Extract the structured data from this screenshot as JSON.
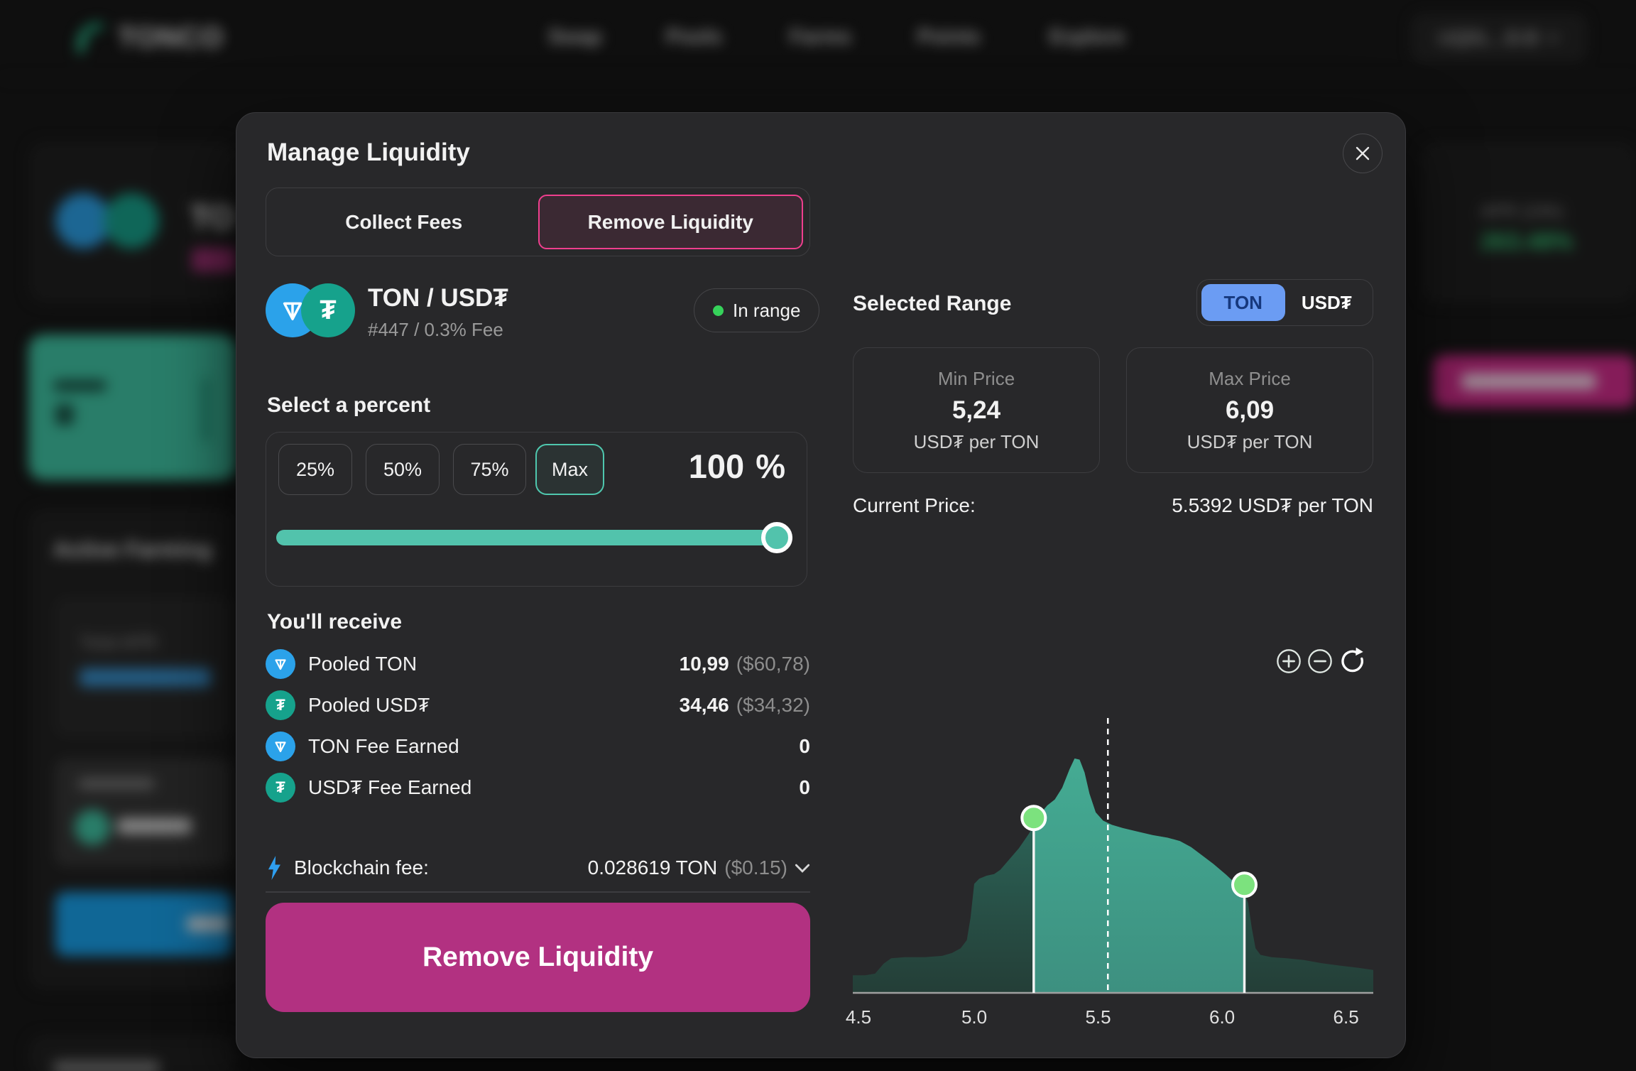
{
  "nav": {
    "brand": "TONCO",
    "items": [
      "Swap",
      "Pools",
      "Farms",
      "Points",
      "Explore"
    ],
    "wallet": "UQDL...i5-B"
  },
  "background": {
    "position_title": "TON",
    "farming_title": "Active Farming",
    "total_apr_label": "Total APR",
    "apr_label": "APR (24h)",
    "apr_value": "263.48%"
  },
  "modal": {
    "title": "Manage Liquidity",
    "tabs": [
      {
        "label": "Collect Fees",
        "active": false
      },
      {
        "label": "Remove Liquidity",
        "active": true
      }
    ],
    "pair": {
      "name": "TON / USD₮",
      "meta": "#447 / 0.3% Fee",
      "status": "In range"
    },
    "percent": {
      "label": "Select a percent",
      "options": [
        "25%",
        "50%",
        "75%",
        "Max"
      ],
      "selected": "Max",
      "value": "100",
      "unit": "%"
    },
    "receive": {
      "label": "You'll receive",
      "rows": [
        {
          "icon": "ton-coin",
          "label": "Pooled TON",
          "value": "10,99",
          "sub": "($60,78)"
        },
        {
          "icon": "usdt-coin",
          "label": "Pooled USD₮",
          "value": "34,46",
          "sub": "($34,32)"
        },
        {
          "icon": "ton-coin",
          "label": "TON Fee Earned",
          "value": "0",
          "sub": ""
        },
        {
          "icon": "usdt-coin",
          "label": "USD₮ Fee Earned",
          "value": "0",
          "sub": ""
        }
      ]
    },
    "fee": {
      "label": "Blockchain fee:",
      "value": "0.028619 TON",
      "sub": "($0.15)"
    },
    "submit": "Remove Liquidity",
    "range": {
      "heading": "Selected Range",
      "toggle": [
        "TON",
        "USD₮"
      ],
      "active_toggle": "TON",
      "min": {
        "label": "Min Price",
        "value": "5,24",
        "unit": "USD₮ per TON"
      },
      "max": {
        "label": "Max Price",
        "value": "6,09",
        "unit": "USD₮ per TON"
      },
      "current": {
        "label": "Current Price:",
        "value": "5.5392 USD₮ per TON"
      }
    }
  },
  "colors": {
    "accent_magenta": "#b23181",
    "tab_border_pink": "#ef3f8e",
    "teal": "#52c3ac",
    "toggle_blue": "#6b9cf3",
    "in_range_green": "#36d25a",
    "ton_blue": "#2ba2ea",
    "usdt_teal": "#16a28c",
    "chart_in_range_top": "#44ab93",
    "chart_in_range_bottom": "#3d9080",
    "chart_out_range_top": "#2e7062",
    "chart_out_range_bottom": "#243e37",
    "chart_handle_green": "#7ce27e"
  },
  "chart_data": {
    "type": "area",
    "description": "liquidity distribution vs price with selected range",
    "x_axis_min": 4.51,
    "x_axis_max": 6.61,
    "x_ticks": [
      4.5,
      5.0,
      5.5,
      6.0,
      6.5
    ],
    "x_tick_labels": [
      "4.5",
      "5.0",
      "5.5",
      "6.0",
      "6.5"
    ],
    "selected_range": [
      5.24,
      6.09
    ],
    "current_price": 5.5392,
    "y_max": 1.0,
    "points": [
      [
        4.505,
        0.075
      ],
      [
        4.56,
        0.075
      ],
      [
        4.6,
        0.082
      ],
      [
        4.635,
        0.125
      ],
      [
        4.665,
        0.148
      ],
      [
        4.72,
        0.152
      ],
      [
        4.8,
        0.152
      ],
      [
        4.87,
        0.158
      ],
      [
        4.91,
        0.17
      ],
      [
        4.945,
        0.19
      ],
      [
        4.97,
        0.225
      ],
      [
        4.985,
        0.32
      ],
      [
        5.0,
        0.465
      ],
      [
        5.02,
        0.487
      ],
      [
        5.05,
        0.5
      ],
      [
        5.08,
        0.507
      ],
      [
        5.105,
        0.525
      ],
      [
        5.14,
        0.568
      ],
      [
        5.18,
        0.617
      ],
      [
        5.22,
        0.678
      ],
      [
        5.24,
        0.713
      ],
      [
        5.265,
        0.762
      ],
      [
        5.295,
        0.8
      ],
      [
        5.325,
        0.825
      ],
      [
        5.355,
        0.875
      ],
      [
        5.385,
        0.955
      ],
      [
        5.405,
        1.0
      ],
      [
        5.425,
        0.995
      ],
      [
        5.445,
        0.94
      ],
      [
        5.465,
        0.85
      ],
      [
        5.49,
        0.77
      ],
      [
        5.52,
        0.735
      ],
      [
        5.555,
        0.717
      ],
      [
        5.6,
        0.703
      ],
      [
        5.66,
        0.688
      ],
      [
        5.72,
        0.673
      ],
      [
        5.78,
        0.662
      ],
      [
        5.83,
        0.648
      ],
      [
        5.875,
        0.622
      ],
      [
        5.915,
        0.59
      ],
      [
        5.965,
        0.55
      ],
      [
        6.015,
        0.505
      ],
      [
        6.055,
        0.466
      ],
      [
        6.09,
        0.428
      ],
      [
        6.105,
        0.383
      ],
      [
        6.12,
        0.275
      ],
      [
        6.135,
        0.19
      ],
      [
        6.155,
        0.162
      ],
      [
        6.2,
        0.152
      ],
      [
        6.26,
        0.148
      ],
      [
        6.33,
        0.14
      ],
      [
        6.4,
        0.127
      ],
      [
        6.47,
        0.117
      ],
      [
        6.55,
        0.107
      ],
      [
        6.62,
        0.098
      ]
    ]
  }
}
